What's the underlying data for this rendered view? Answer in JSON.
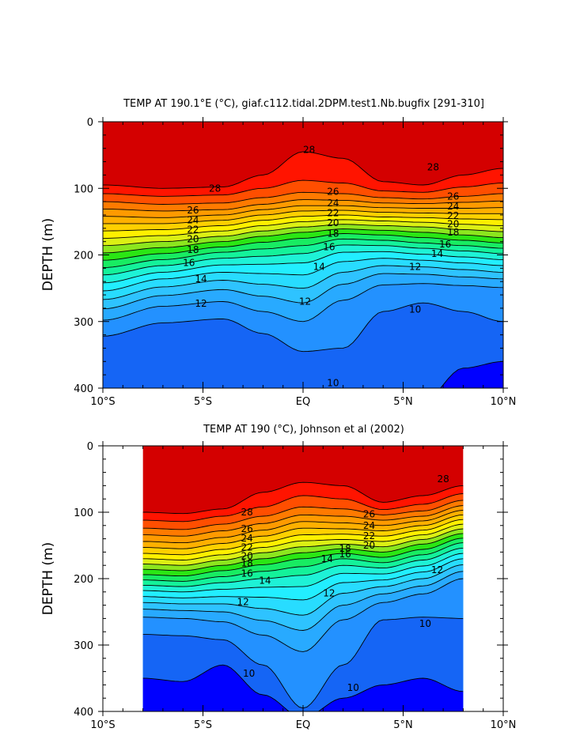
{
  "chart_data": [
    {
      "type": "heatmap",
      "id": "top",
      "title": "TEMP AT 190.1°E (°C), giaf.c112.tidal.2DPM.test1.Nb.bugfix [291-310]",
      "ylabel": "DEPTH (m)",
      "xlabel": "",
      "x_ticks": [
        "10°S",
        "5°S",
        "EQ",
        "5°N",
        "10°N"
      ],
      "x_tick_values": [
        -10,
        -5,
        0,
        5,
        10
      ],
      "y_ticks": [
        "0",
        "100",
        "200",
        "300",
        "400"
      ],
      "y_tick_values": [
        0,
        100,
        200,
        300,
        400
      ],
      "xlim": [
        -10,
        10
      ],
      "ylim": [
        0,
        400
      ],
      "y_inverted": true,
      "data_xlim": [
        -10,
        10
      ],
      "levels": [
        28,
        27,
        26,
        25,
        24,
        23,
        22,
        21,
        20,
        19,
        18,
        17,
        16,
        15,
        14,
        13,
        12,
        11,
        10,
        9
      ],
      "isotherm_depths_x": [
        -10,
        -7,
        -4,
        -2,
        0,
        2,
        4,
        6,
        8,
        10
      ],
      "isotherm_depths": {
        "28": [
          95,
          100,
          98,
          80,
          45,
          55,
          90,
          95,
          80,
          70
        ],
        "27": [
          108,
          112,
          110,
          100,
          88,
          92,
          104,
          106,
          98,
          92
        ],
        "26": [
          120,
          124,
          122,
          114,
          106,
          108,
          114,
          116,
          112,
          108
        ],
        "25": [
          131,
          134,
          132,
          124,
          117,
          118,
          122,
          123,
          121,
          119
        ],
        "24": [
          142,
          144,
          140,
          132,
          126,
          126,
          129,
          130,
          130,
          129
        ],
        "23": [
          153,
          153,
          148,
          140,
          134,
          133,
          136,
          137,
          138,
          138
        ],
        "22": [
          164,
          162,
          156,
          148,
          142,
          140,
          143,
          144,
          146,
          147
        ],
        "21": [
          175,
          171,
          164,
          156,
          150,
          147,
          149,
          151,
          154,
          156
        ],
        "20": [
          186,
          180,
          172,
          164,
          158,
          154,
          156,
          158,
          162,
          165
        ],
        "19": [
          197,
          189,
          180,
          172,
          166,
          161,
          163,
          166,
          170,
          174
        ],
        "18": [
          208,
          198,
          188,
          181,
          175,
          168,
          170,
          174,
          178,
          182
        ],
        "17": [
          219,
          207,
          196,
          191,
          186,
          176,
          178,
          182,
          186,
          190
        ],
        "16": [
          230,
          216,
          205,
          202,
          198,
          185,
          186,
          190,
          194,
          198
        ],
        "15": [
          242,
          226,
          215,
          214,
          212,
          196,
          195,
          199,
          203,
          207
        ],
        "14": [
          254,
          236,
          226,
          228,
          230,
          210,
          205,
          208,
          212,
          216
        ],
        "13": [
          267,
          248,
          238,
          244,
          250,
          226,
          216,
          218,
          222,
          226
        ],
        "12": [
          281,
          261,
          252,
          262,
          272,
          244,
          228,
          229,
          233,
          236
        ],
        "11": [
          298,
          277,
          270,
          285,
          300,
          268,
          245,
          243,
          246,
          249
        ],
        "10": [
          322,
          302,
          296,
          318,
          345,
          340,
          285,
          272,
          285,
          300
        ],
        "9": [
          420,
          420,
          420,
          420,
          420,
          420,
          420,
          420,
          370,
          360
        ]
      },
      "contour_labels": [
        {
          "text": "28",
          "x": 0.3,
          "y": 42
        },
        {
          "text": "28",
          "x": 6.5,
          "y": 68
        },
        {
          "text": "28",
          "x": -4.4,
          "y": 100
        },
        {
          "text": "26",
          "x": 1.5,
          "y": 105
        },
        {
          "text": "24",
          "x": 1.5,
          "y": 122
        },
        {
          "text": "22",
          "x": 1.5,
          "y": 137
        },
        {
          "text": "20",
          "x": 1.5,
          "y": 152
        },
        {
          "text": "18",
          "x": 1.5,
          "y": 168
        },
        {
          "text": "26",
          "x": 7.5,
          "y": 112
        },
        {
          "text": "24",
          "x": 7.5,
          "y": 127
        },
        {
          "text": "22",
          "x": 7.5,
          "y": 141
        },
        {
          "text": "20",
          "x": 7.5,
          "y": 154
        },
        {
          "text": "18",
          "x": 7.5,
          "y": 166
        },
        {
          "text": "16",
          "x": 7.1,
          "y": 184
        },
        {
          "text": "14",
          "x": 6.7,
          "y": 198
        },
        {
          "text": "12",
          "x": 5.6,
          "y": 218
        },
        {
          "text": "26",
          "x": -5.5,
          "y": 133
        },
        {
          "text": "24",
          "x": -5.5,
          "y": 148
        },
        {
          "text": "22",
          "x": -5.5,
          "y": 162
        },
        {
          "text": "20",
          "x": -5.5,
          "y": 176
        },
        {
          "text": "18",
          "x": -5.5,
          "y": 192
        },
        {
          "text": "16",
          "x": -5.7,
          "y": 212
        },
        {
          "text": "14",
          "x": -5.1,
          "y": 236
        },
        {
          "text": "12",
          "x": -5.1,
          "y": 273
        },
        {
          "text": "16",
          "x": 1.3,
          "y": 188
        },
        {
          "text": "14",
          "x": 0.8,
          "y": 218
        },
        {
          "text": "12",
          "x": 0.1,
          "y": 270
        },
        {
          "text": "10",
          "x": 5.6,
          "y": 282
        },
        {
          "text": "10",
          "x": 1.5,
          "y": 392
        }
      ]
    },
    {
      "type": "heatmap",
      "id": "bottom",
      "title": "TEMP AT 190 (°C), Johnson et al (2002)",
      "ylabel": "DEPTH (m)",
      "xlabel": "",
      "x_ticks": [
        "10°S",
        "5°S",
        "EQ",
        "5°N",
        "10°N"
      ],
      "x_tick_values": [
        -10,
        -5,
        0,
        5,
        10
      ],
      "y_ticks": [
        "0",
        "100",
        "200",
        "300",
        "400"
      ],
      "y_tick_values": [
        0,
        100,
        200,
        300,
        400
      ],
      "xlim": [
        -10,
        10
      ],
      "ylim": [
        0,
        400
      ],
      "y_inverted": true,
      "data_xlim": [
        -8,
        8
      ],
      "levels": [
        28,
        27,
        26,
        25,
        24,
        23,
        22,
        21,
        20,
        19,
        18,
        17,
        16,
        15,
        14,
        13,
        12,
        11,
        10,
        9
      ],
      "isotherm_depths_x": [
        -8,
        -6,
        -4,
        -2,
        0,
        2,
        4,
        6,
        8
      ],
      "isotherm_depths": {
        "28": [
          100,
          102,
          95,
          70,
          55,
          60,
          85,
          75,
          60
        ],
        "27": [
          112,
          114,
          106,
          92,
          75,
          80,
          96,
          88,
          72
        ],
        "26": [
          124,
          126,
          118,
          106,
          92,
          95,
          104,
          98,
          82
        ],
        "25": [
          134,
          136,
          128,
          117,
          104,
          106,
          112,
          106,
          90
        ],
        "24": [
          144,
          146,
          138,
          127,
          114,
          116,
          120,
          113,
          97
        ],
        "23": [
          153,
          155,
          147,
          136,
          124,
          125,
          128,
          120,
          104
        ],
        "22": [
          162,
          164,
          156,
          145,
          134,
          133,
          136,
          127,
          111
        ],
        "21": [
          170,
          172,
          164,
          153,
          143,
          141,
          144,
          134,
          118
        ],
        "20": [
          178,
          180,
          172,
          161,
          152,
          148,
          152,
          141,
          125
        ],
        "19": [
          186,
          188,
          180,
          170,
          161,
          155,
          160,
          148,
          132
        ],
        "18": [
          194,
          196,
          188,
          179,
          170,
          162,
          168,
          156,
          139
        ],
        "17": [
          202,
          204,
          197,
          189,
          182,
          170,
          176,
          164,
          146
        ],
        "16": [
          210,
          212,
          206,
          200,
          195,
          180,
          184,
          172,
          154
        ],
        "15": [
          218,
          220,
          216,
          213,
          212,
          192,
          193,
          181,
          162
        ],
        "14": [
          227,
          229,
          227,
          228,
          232,
          206,
          202,
          190,
          170
        ],
        "13": [
          236,
          238,
          238,
          245,
          255,
          222,
          212,
          200,
          179
        ],
        "12": [
          246,
          248,
          250,
          263,
          278,
          240,
          223,
          211,
          189
        ],
        "11": [
          258,
          260,
          265,
          285,
          310,
          262,
          236,
          223,
          200
        ],
        "10": [
          284,
          286,
          292,
          330,
          395,
          330,
          262,
          258,
          260
        ],
        "9": [
          350,
          355,
          330,
          375,
          410,
          380,
          360,
          350,
          370
        ]
      },
      "contour_labels": [
        {
          "text": "28",
          "x": 7.0,
          "y": 50
        },
        {
          "text": "28",
          "x": -2.8,
          "y": 100
        },
        {
          "text": "26",
          "x": 3.3,
          "y": 103
        },
        {
          "text": "24",
          "x": 3.3,
          "y": 120
        },
        {
          "text": "22",
          "x": 3.3,
          "y": 136
        },
        {
          "text": "20",
          "x": 3.3,
          "y": 150
        },
        {
          "text": "18",
          "x": 2.1,
          "y": 155
        },
        {
          "text": "16",
          "x": 2.1,
          "y": 163
        },
        {
          "text": "26",
          "x": -2.8,
          "y": 125
        },
        {
          "text": "24",
          "x": -2.8,
          "y": 139
        },
        {
          "text": "22",
          "x": -2.8,
          "y": 153
        },
        {
          "text": "20",
          "x": -2.8,
          "y": 166
        },
        {
          "text": "18",
          "x": -2.8,
          "y": 177
        },
        {
          "text": "16",
          "x": -2.8,
          "y": 192
        },
        {
          "text": "14",
          "x": -1.9,
          "y": 203
        },
        {
          "text": "14",
          "x": 1.2,
          "y": 170
        },
        {
          "text": "12",
          "x": -3.0,
          "y": 235
        },
        {
          "text": "12",
          "x": 1.3,
          "y": 222
        },
        {
          "text": "12",
          "x": 6.7,
          "y": 187
        },
        {
          "text": "10",
          "x": 6.1,
          "y": 268
        },
        {
          "text": "10",
          "x": -2.7,
          "y": 343
        },
        {
          "text": "10",
          "x": 2.5,
          "y": 364
        }
      ]
    }
  ],
  "colors": {
    "ramp": [
      "#0000ff",
      "#1565f5",
      "#2391ff",
      "#28aaff",
      "#2ec3ff",
      "#28dcff",
      "#22eeff",
      "#1ef2d6",
      "#14f29a",
      "#18ec62",
      "#2be614",
      "#8ce61e",
      "#dcf014",
      "#fff000",
      "#ffd000",
      "#ffb000",
      "#ff9a00",
      "#ff7a00",
      "#ff4e00",
      "#ff1400",
      "#d40000"
    ]
  }
}
